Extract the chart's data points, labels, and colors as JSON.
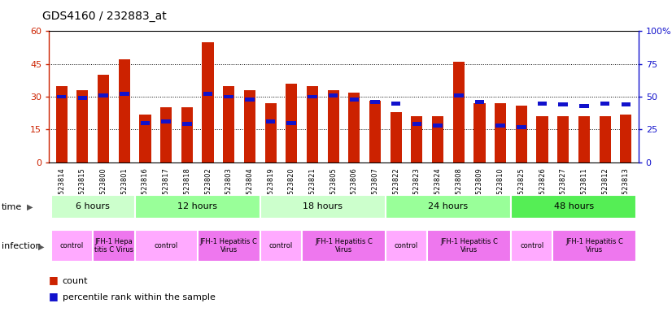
{
  "title": "GDS4160 / 232883_at",
  "samples": [
    "GSM523814",
    "GSM523815",
    "GSM523800",
    "GSM523801",
    "GSM523816",
    "GSM523817",
    "GSM523818",
    "GSM523802",
    "GSM523803",
    "GSM523804",
    "GSM523819",
    "GSM523820",
    "GSM523821",
    "GSM523805",
    "GSM523806",
    "GSM523807",
    "GSM523822",
    "GSM523823",
    "GSM523824",
    "GSM523808",
    "GSM523809",
    "GSM523810",
    "GSM523825",
    "GSM523826",
    "GSM523827",
    "GSM523811",
    "GSM523812",
    "GSM523813"
  ],
  "counts": [
    35,
    33,
    40,
    47,
    22,
    25,
    25,
    55,
    35,
    33,
    27,
    36,
    35,
    33,
    32,
    28,
    23,
    21,
    21,
    46,
    27,
    27,
    26,
    21,
    21,
    21,
    21,
    22
  ],
  "percentiles": [
    50,
    49,
    51,
    52,
    30,
    31,
    29,
    52,
    50,
    48,
    31,
    30,
    50,
    51,
    48,
    46,
    45,
    29,
    28,
    51,
    46,
    28,
    27,
    45,
    44,
    43,
    45,
    44
  ],
  "time_groups": [
    {
      "label": "6 hours",
      "start": 0,
      "end": 4,
      "color": "#ccffcc"
    },
    {
      "label": "12 hours",
      "start": 4,
      "end": 10,
      "color": "#99ff99"
    },
    {
      "label": "18 hours",
      "start": 10,
      "end": 16,
      "color": "#ccffcc"
    },
    {
      "label": "24 hours",
      "start": 16,
      "end": 22,
      "color": "#99ff99"
    },
    {
      "label": "48 hours",
      "start": 22,
      "end": 28,
      "color": "#55ee55"
    }
  ],
  "infection_groups": [
    {
      "label": "control",
      "start": 0,
      "end": 2,
      "color": "#ffaaff"
    },
    {
      "label": "JFH-1 Hepa\ntitis C Virus",
      "start": 2,
      "end": 4,
      "color": "#ee77ee"
    },
    {
      "label": "control",
      "start": 4,
      "end": 7,
      "color": "#ffaaff"
    },
    {
      "label": "JFH-1 Hepatitis C\nVirus",
      "start": 7,
      "end": 10,
      "color": "#ee77ee"
    },
    {
      "label": "control",
      "start": 10,
      "end": 12,
      "color": "#ffaaff"
    },
    {
      "label": "JFH-1 Hepatitis C\nVirus",
      "start": 12,
      "end": 16,
      "color": "#ee77ee"
    },
    {
      "label": "control",
      "start": 16,
      "end": 18,
      "color": "#ffaaff"
    },
    {
      "label": "JFH-1 Hepatitis C\nVirus",
      "start": 18,
      "end": 22,
      "color": "#ee77ee"
    },
    {
      "label": "control",
      "start": 22,
      "end": 24,
      "color": "#ffaaff"
    },
    {
      "label": "JFH-1 Hepatitis C\nVirus",
      "start": 24,
      "end": 28,
      "color": "#ee77ee"
    }
  ],
  "ylim_left": [
    0,
    60
  ],
  "ylim_right": [
    0,
    100
  ],
  "yticks_left": [
    0,
    15,
    30,
    45,
    60
  ],
  "yticks_right": [
    0,
    25,
    50,
    75,
    100
  ],
  "bar_color": "#cc2200",
  "percentile_color": "#1111cc",
  "bg_color": "#ffffff"
}
